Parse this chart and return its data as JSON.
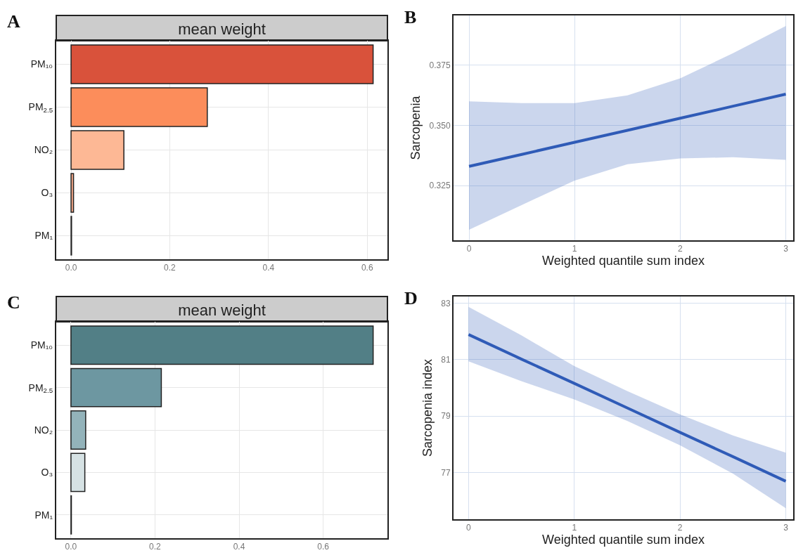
{
  "chart_data": [
    {
      "type": "bar",
      "orientation": "horizontal",
      "title": "mean weight",
      "annotations": [
        "A"
      ],
      "categories": [
        "PM₁₀",
        "PM$_{2.5}$",
        "NO₂",
        "O₃",
        "PM₁"
      ],
      "values": [
        0.612,
        0.276,
        0.107,
        0.005,
        0.001
      ],
      "colors": [
        "#d9523b",
        "#fc8d5b",
        "#fdb895",
        "#f5a888",
        "#e07a5a"
      ],
      "xlim": [
        -0.03,
        0.641
      ],
      "xticks": [
        {
          "value": 0,
          "label": "0.0"
        },
        0.2,
        0.4,
        0.6
      ],
      "grid": true
    },
    {
      "type": "line",
      "annotations": [
        "B"
      ],
      "xlabel": "Weighted quantile sum index",
      "ylabel": "Sarcopenia",
      "x": [
        0,
        0.5,
        1,
        1.5,
        2,
        2.5,
        3
      ],
      "series": [
        {
          "color": "#2f5bb7",
          "values": [
            0.333,
            0.338,
            0.343,
            0.348,
            0.353,
            0.358,
            0.363
          ],
          "lower": [
            0.3067,
            0.317,
            0.3271,
            0.3339,
            0.3363,
            0.3368,
            0.3357
          ],
          "upper": [
            0.36,
            0.3593,
            0.3593,
            0.3625,
            0.3696,
            0.38,
            0.3913
          ]
        }
      ],
      "xlim": [
        -0.147,
        3.07
      ],
      "xticks": [
        0,
        1,
        2,
        3
      ],
      "ylim": [
        0.3023,
        0.3957
      ],
      "yticks": [
        0.325,
        {
          "value": 0.35,
          "label": "0.350"
        },
        0.375
      ],
      "grid": true,
      "marker": "none",
      "line_style": "solid"
    },
    {
      "type": "bar",
      "orientation": "horizontal",
      "title": "mean weight",
      "annotations": [
        "C"
      ],
      "categories": [
        "PM₁₀",
        "PM$_{2.5}$",
        "NO₂",
        "O₃",
        "PM₁"
      ],
      "values": [
        0.719,
        0.215,
        0.035,
        0.033,
        0.001
      ],
      "colors": [
        "#527f86",
        "#6d97a1",
        "#93b3ba",
        "#d6e2e4",
        "#40666c"
      ],
      "xlim": [
        -0.035,
        0.753
      ],
      "xticks": [
        {
          "value": 0,
          "label": "0.0"
        },
        0.2,
        0.4,
        0.6
      ],
      "grid": true
    },
    {
      "type": "line",
      "annotations": [
        "D"
      ],
      "xlabel": "Weighted quantile sum index",
      "ylabel": "Sarcopenia index",
      "x": [
        0,
        0.5,
        1,
        1.5,
        2,
        2.5,
        3
      ],
      "series": [
        {
          "color": "#2f5bb7",
          "values": [
            81.89,
            81.02,
            80.16,
            79.29,
            78.42,
            77.56,
            76.69
          ],
          "lower": [
            80.94,
            80.24,
            79.59,
            78.83,
            77.96,
            76.96,
            75.73
          ],
          "upper": [
            82.87,
            81.86,
            80.77,
            79.89,
            79.06,
            78.31,
            77.7
          ]
        }
      ],
      "xlim": [
        -0.142,
        3.07
      ],
      "xticks": [
        0,
        1,
        2,
        3
      ],
      "ylim": [
        75.34,
        83.24
      ],
      "yticks": [
        77,
        79,
        81,
        83
      ],
      "grid": true,
      "marker": "none",
      "line_style": "solid"
    }
  ]
}
